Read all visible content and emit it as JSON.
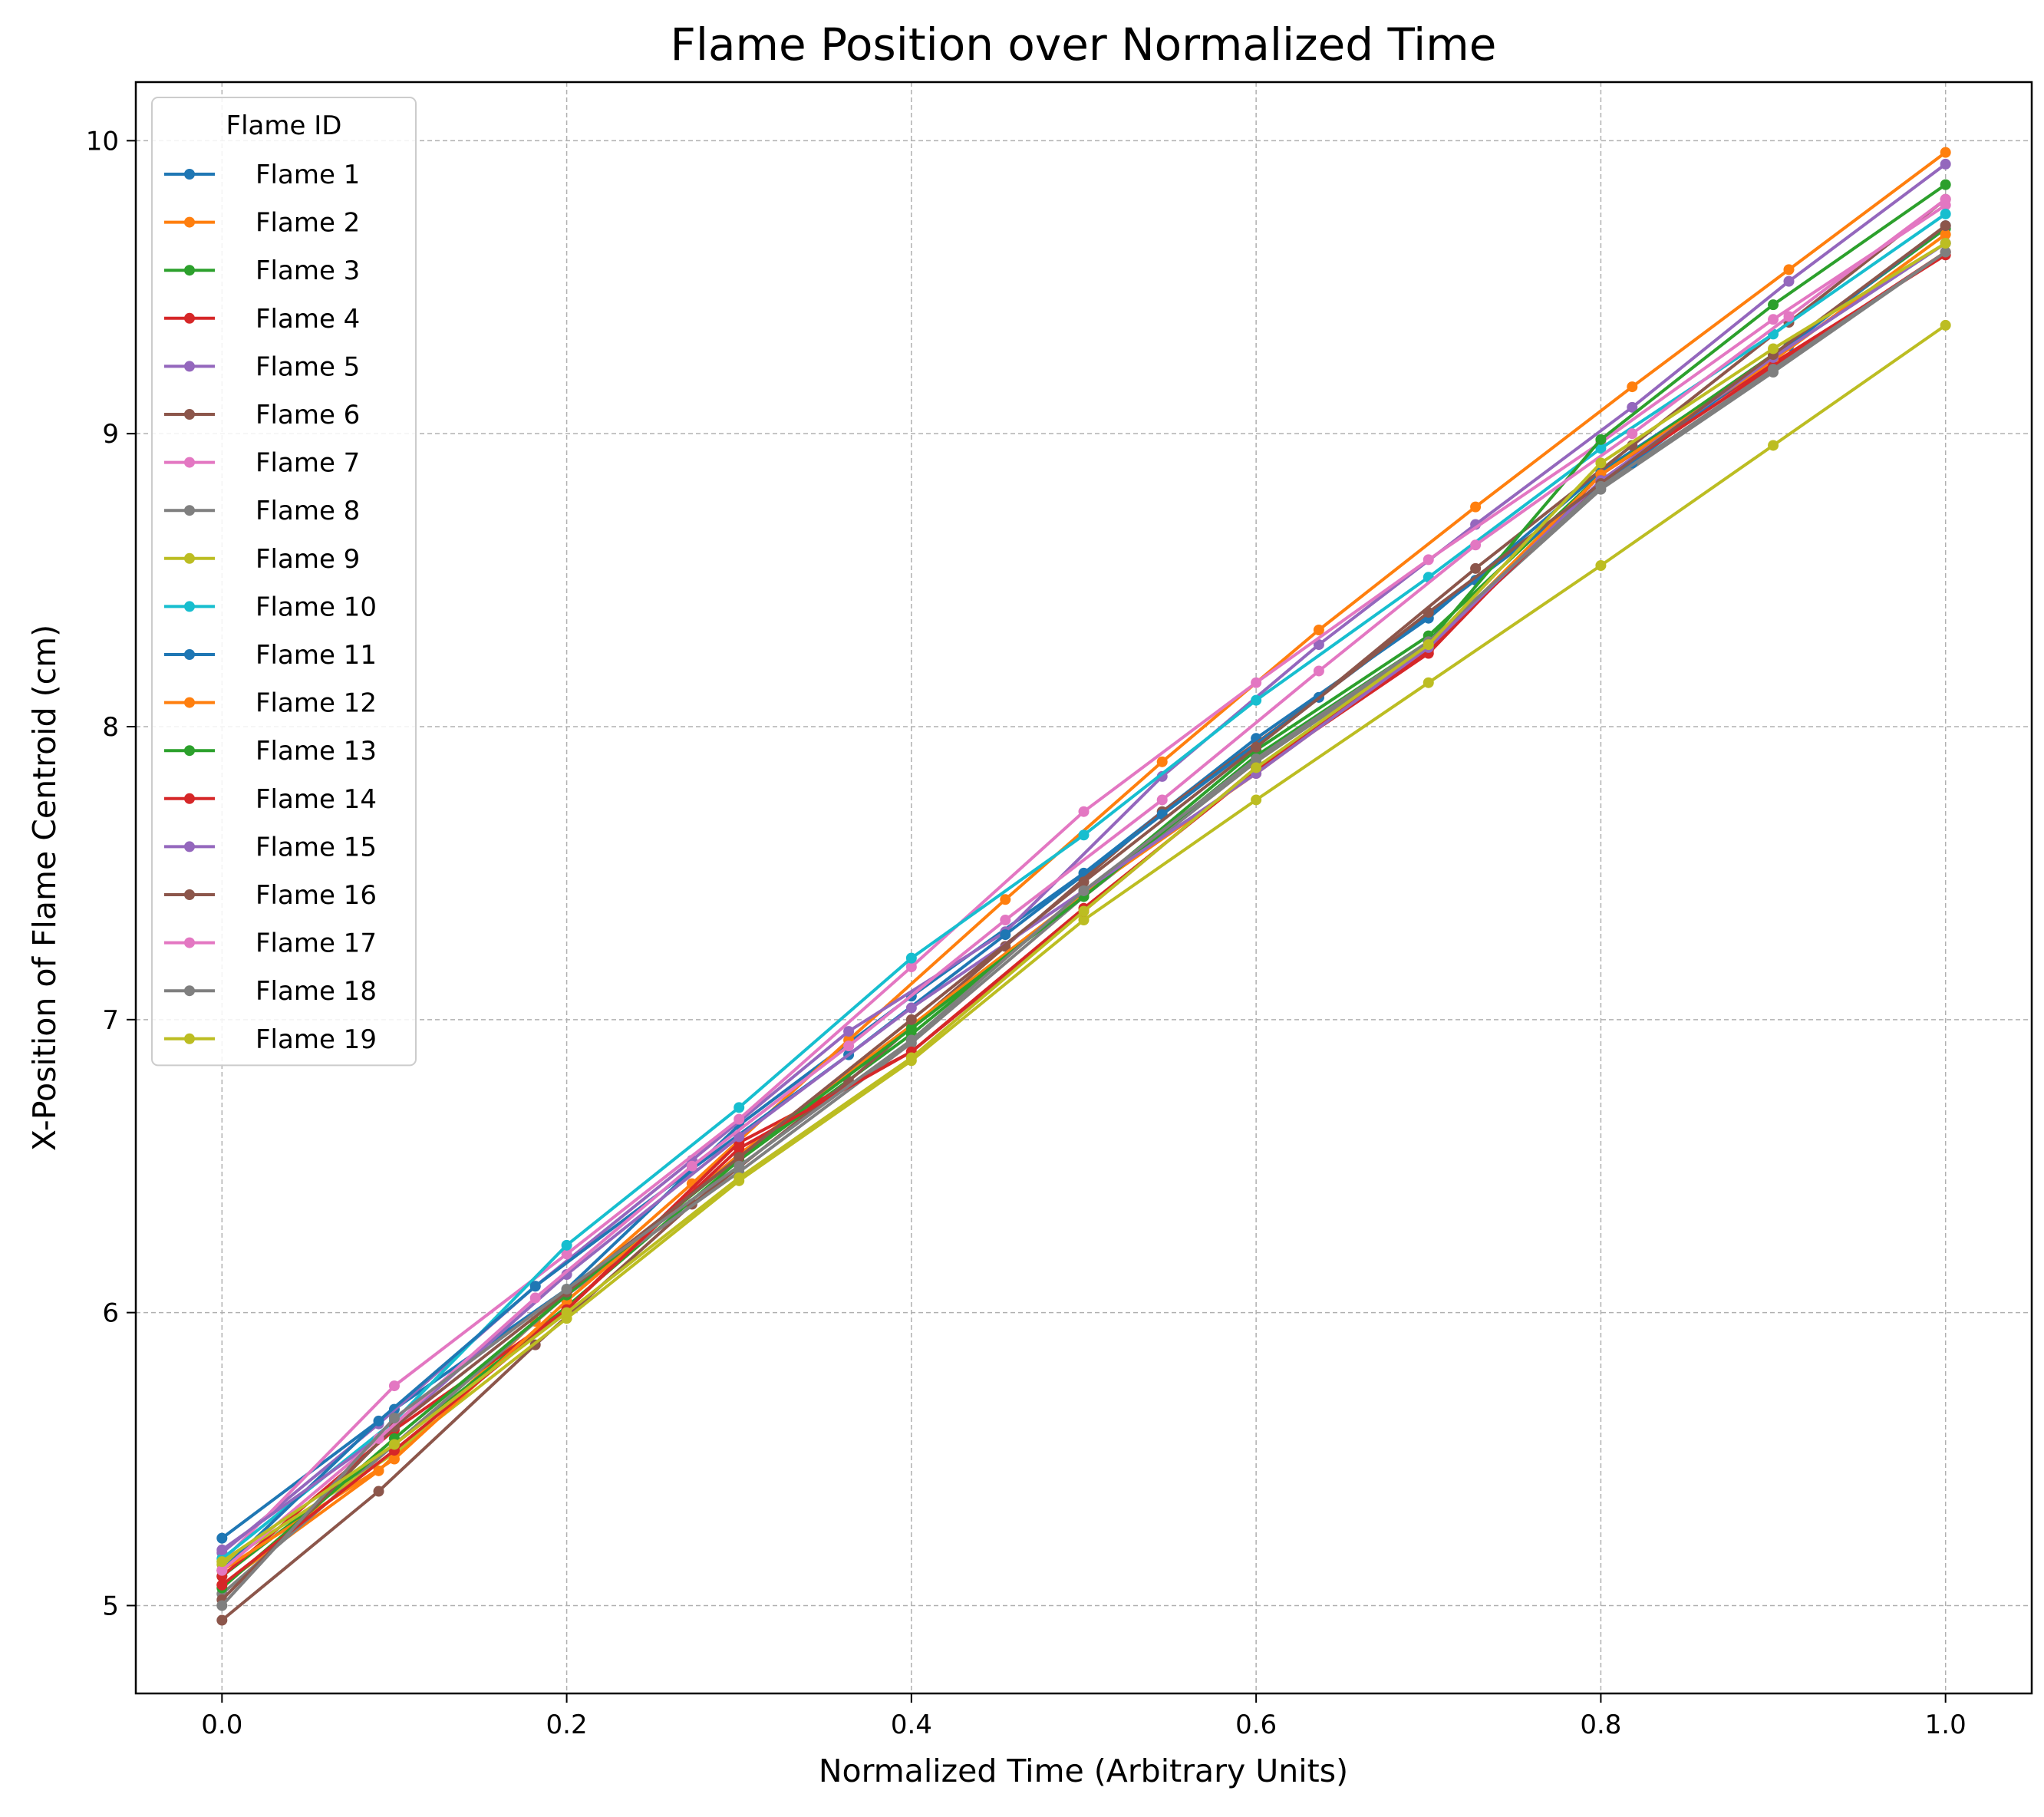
{
  "chart_data": {
    "type": "line",
    "title": "Flame Position over Normalized Time",
    "xlabel": "Normalized Time (Arbitrary Units)",
    "ylabel": "X-Position of Flame Centroid (cm)",
    "xlim": [
      -0.05,
      1.05
    ],
    "ylim": [
      4.7,
      10.2
    ],
    "xticks": [
      0.0,
      0.2,
      0.4,
      0.6,
      0.8,
      1.0
    ],
    "xtick_labels": [
      "0.0",
      "0.2",
      "0.4",
      "0.6",
      "0.8",
      "1.0"
    ],
    "yticks": [
      5,
      6,
      7,
      8,
      9,
      10
    ],
    "ytick_labels": [
      "5",
      "6",
      "7",
      "8",
      "9",
      "10"
    ],
    "grid": true,
    "legend": {
      "title": "Flame ID",
      "placement": "upper-left"
    },
    "series": [
      {
        "name": "Flame 1",
        "color": "#1f77b4",
        "x": [
          0,
          0.1,
          0.2,
          0.3,
          0.4,
          0.5,
          0.6,
          0.7,
          0.8,
          0.9,
          1.0
        ],
        "y": [
          5.23,
          5.67,
          6.08,
          6.64,
          7.08,
          7.5,
          7.96,
          8.37,
          8.87,
          9.26,
          9.65
        ]
      },
      {
        "name": "Flame 2",
        "color": "#ff7f0e",
        "x": [
          0,
          0.0909,
          0.1818,
          0.2727,
          0.3636,
          0.4545,
          0.5455,
          0.6364,
          0.7273,
          0.8182,
          0.9091,
          1.0
        ],
        "y": [
          5.07,
          5.46,
          5.97,
          6.44,
          6.93,
          7.41,
          7.88,
          8.33,
          8.75,
          9.16,
          9.56,
          9.96
        ]
      },
      {
        "name": "Flame 3",
        "color": "#2ca02c",
        "x": [
          0,
          0.1,
          0.2,
          0.3,
          0.4,
          0.5,
          0.6,
          0.7,
          0.8,
          0.9,
          1.0
        ],
        "y": [
          5.1,
          5.55,
          6.02,
          6.52,
          6.95,
          7.43,
          7.92,
          8.31,
          8.86,
          9.27,
          9.7
        ]
      },
      {
        "name": "Flame 4",
        "color": "#d62728",
        "x": [
          0,
          0.1,
          0.2,
          0.3,
          0.4,
          0.5,
          0.6,
          0.7,
          0.8,
          0.9,
          1.0
        ],
        "y": [
          5.1,
          5.6,
          6.01,
          6.58,
          6.89,
          7.38,
          7.85,
          8.25,
          8.86,
          9.24,
          9.61
        ]
      },
      {
        "name": "Flame 5",
        "color": "#9467bd",
        "x": [
          0,
          0.0909,
          0.1818,
          0.2727,
          0.3636,
          0.4545,
          0.5455,
          0.6364,
          0.7273,
          0.8182,
          0.9091,
          1.0
        ],
        "y": [
          5.18,
          5.62,
          6.09,
          6.52,
          6.96,
          7.3,
          7.83,
          8.28,
          8.69,
          9.09,
          9.52,
          9.92
        ]
      },
      {
        "name": "Flame 6",
        "color": "#8c564b",
        "x": [
          0,
          0.0909,
          0.1818,
          0.2727,
          0.3636,
          0.4545,
          0.5455,
          0.6364,
          0.7273,
          0.8182,
          0.9091,
          1.0
        ],
        "y": [
          4.95,
          5.39,
          5.89,
          6.37,
          6.79,
          7.25,
          7.71,
          8.1,
          8.54,
          8.96,
          9.38,
          9.8
        ]
      },
      {
        "name": "Flame 7",
        "color": "#e377c2",
        "x": [
          0,
          0.1,
          0.2,
          0.3,
          0.4,
          0.5,
          0.6,
          0.7,
          0.8,
          0.9,
          1.0
        ],
        "y": [
          5.15,
          5.75,
          6.2,
          6.66,
          7.18,
          7.71,
          8.15,
          8.57,
          8.97,
          9.39,
          9.78
        ]
      },
      {
        "name": "Flame 8",
        "color": "#7f7f7f",
        "x": [
          0,
          0.1,
          0.2,
          0.3,
          0.4,
          0.5,
          0.6,
          0.7,
          0.8,
          0.9,
          1.0
        ],
        "y": [
          5.04,
          5.55,
          6.06,
          6.48,
          6.92,
          7.42,
          7.88,
          8.28,
          8.81,
          9.21,
          9.62
        ]
      },
      {
        "name": "Flame 9",
        "color": "#bcbd22",
        "x": [
          0,
          0.1,
          0.2,
          0.3,
          0.4,
          0.5,
          0.6,
          0.7,
          0.8,
          0.9,
          1.0
        ],
        "y": [
          5.14,
          5.52,
          5.98,
          6.45,
          6.86,
          7.34,
          7.75,
          8.15,
          8.55,
          8.96,
          9.37
        ]
      },
      {
        "name": "Flame 10",
        "color": "#17becf",
        "x": [
          0,
          0.1,
          0.2,
          0.3,
          0.4,
          0.5,
          0.6,
          0.7,
          0.8,
          0.9,
          1.0
        ],
        "y": [
          5.16,
          5.63,
          6.23,
          6.7,
          7.21,
          7.63,
          8.09,
          8.51,
          8.95,
          9.34,
          9.75
        ]
      },
      {
        "name": "Flame 11",
        "color": "#1f77b4",
        "x": [
          0,
          0.0909,
          0.1818,
          0.2727,
          0.3636,
          0.4545,
          0.5455,
          0.6364,
          0.7273,
          0.8182,
          0.9091,
          1.0
        ],
        "y": [
          5.12,
          5.63,
          6.09,
          6.49,
          6.88,
          7.29,
          7.7,
          8.1,
          8.5,
          8.9,
          9.3,
          9.71
        ]
      },
      {
        "name": "Flame 12",
        "color": "#ff7f0e",
        "x": [
          0,
          0.1,
          0.2,
          0.3,
          0.4,
          0.5,
          0.6,
          0.7,
          0.8,
          0.9,
          1.0
        ],
        "y": [
          5.12,
          5.5,
          6.04,
          6.54,
          6.98,
          7.43,
          7.84,
          8.27,
          8.86,
          9.25,
          9.68
        ]
      },
      {
        "name": "Flame 13",
        "color": "#2ca02c",
        "x": [
          0,
          0.1,
          0.2,
          0.3,
          0.4,
          0.5,
          0.6,
          0.7,
          0.8,
          0.9,
          1.0
        ],
        "y": [
          5.06,
          5.57,
          6.06,
          6.53,
          6.97,
          7.42,
          7.9,
          8.29,
          8.98,
          9.44,
          9.85
        ]
      },
      {
        "name": "Flame 14",
        "color": "#d62728",
        "x": [
          0,
          0.1,
          0.2,
          0.3,
          0.4,
          0.5,
          0.6,
          0.7,
          0.8,
          0.9,
          1.0
        ],
        "y": [
          5.07,
          5.53,
          6.01,
          6.56,
          6.89,
          7.37,
          7.86,
          8.26,
          8.84,
          9.23,
          9.62
        ]
      },
      {
        "name": "Flame 15",
        "color": "#9467bd",
        "x": [
          0,
          0.1,
          0.2,
          0.3,
          0.4,
          0.5,
          0.6,
          0.7,
          0.8,
          0.9,
          1.0
        ],
        "y": [
          5.19,
          5.61,
          6.13,
          6.6,
          7.04,
          7.44,
          7.84,
          8.27,
          8.84,
          9.26,
          9.65
        ]
      },
      {
        "name": "Flame 16",
        "color": "#8c564b",
        "x": [
          0,
          0.1,
          0.2,
          0.3,
          0.4,
          0.5,
          0.6,
          0.7,
          0.8,
          0.9,
          1.0
        ],
        "y": [
          5.02,
          5.61,
          6.07,
          6.53,
          7.0,
          7.47,
          7.93,
          8.39,
          8.83,
          9.27,
          9.71
        ]
      },
      {
        "name": "Flame 17",
        "color": "#e377c2",
        "x": [
          0,
          0.0909,
          0.1818,
          0.2727,
          0.3636,
          0.4545,
          0.5455,
          0.6364,
          0.7273,
          0.8182,
          0.9091,
          1.0
        ],
        "y": [
          5.12,
          5.57,
          6.05,
          6.5,
          6.91,
          7.34,
          7.75,
          8.19,
          8.62,
          9.0,
          9.4,
          9.8
        ]
      },
      {
        "name": "Flame 18",
        "color": "#7f7f7f",
        "x": [
          0,
          0.1,
          0.2,
          0.3,
          0.4,
          0.5,
          0.6,
          0.7,
          0.8,
          0.9,
          1.0
        ],
        "y": [
          5.0,
          5.64,
          6.08,
          6.5,
          6.93,
          7.44,
          7.89,
          8.29,
          8.82,
          9.22,
          9.62
        ]
      },
      {
        "name": "Flame 19",
        "color": "#bcbd22",
        "x": [
          0,
          0.1,
          0.2,
          0.3,
          0.4,
          0.5,
          0.6,
          0.7,
          0.8,
          0.9,
          1.0
        ],
        "y": [
          5.15,
          5.55,
          6.0,
          6.46,
          6.87,
          7.37,
          7.86,
          8.28,
          8.9,
          9.29,
          9.65
        ]
      }
    ]
  }
}
